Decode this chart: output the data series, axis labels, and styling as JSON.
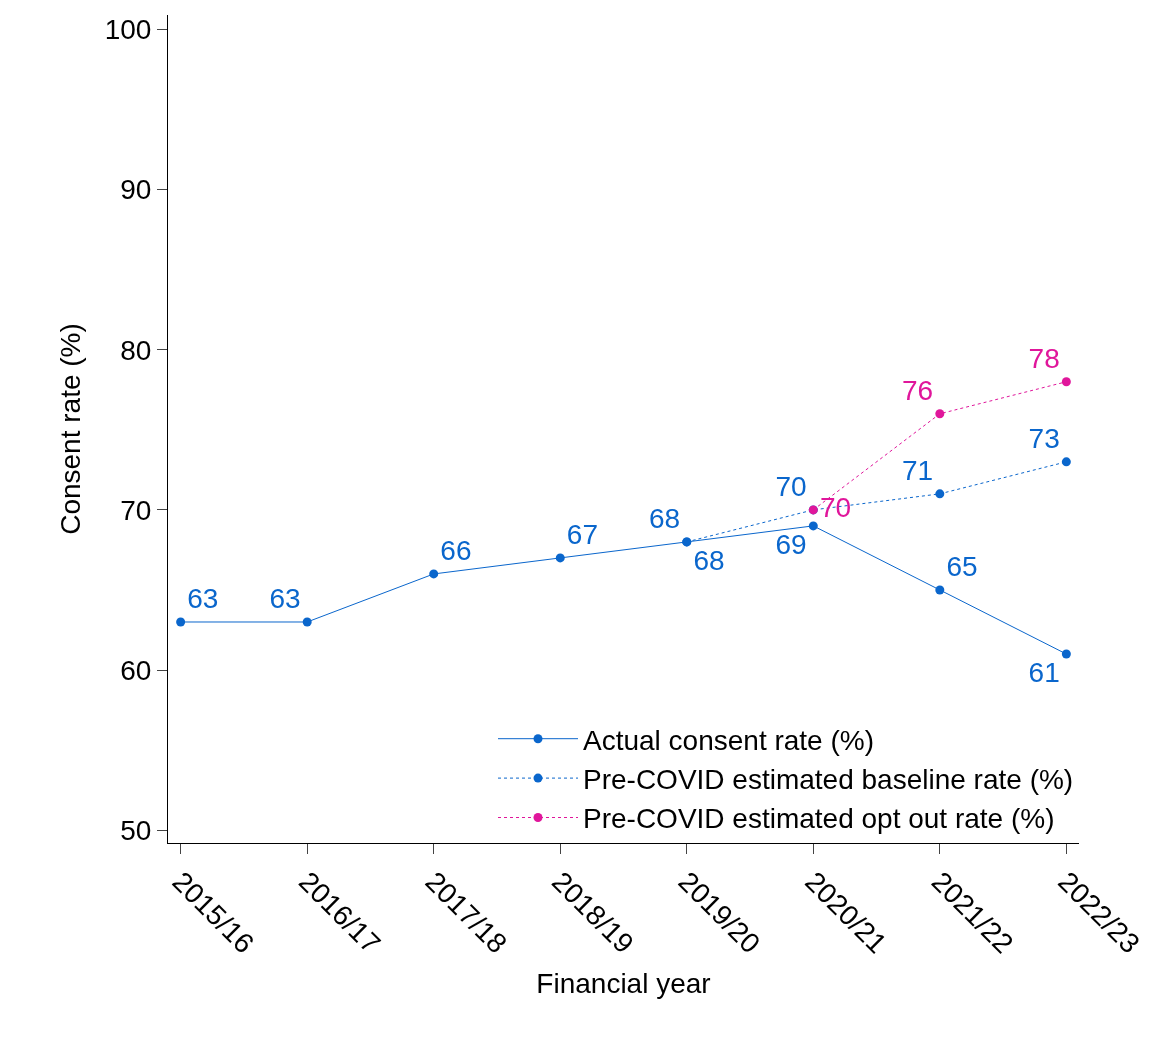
{
  "chart_data": {
    "type": "line",
    "xlabel": "Financial year",
    "ylabel": "Consent rate (%)",
    "categories": [
      "2015/16",
      "2016/17",
      "2017/18",
      "2018/19",
      "2019/20",
      "2020/21",
      "2021/22",
      "2022/23"
    ],
    "series": [
      {
        "name": "Actual consent rate (%)",
        "color": "#0a66cc",
        "line_style": "solid",
        "values": [
          63,
          63,
          66,
          67,
          68,
          69,
          65,
          61
        ]
      },
      {
        "name": "Pre-COVID estimated baseline rate (%)",
        "color": "#0a66cc",
        "line_style": "dotted",
        "values": [
          null,
          null,
          null,
          null,
          68,
          70,
          71,
          73
        ]
      },
      {
        "name": "Pre-COVID estimated opt out rate (%)",
        "color": "#e0169b",
        "line_style": "dotted",
        "values": [
          null,
          null,
          null,
          null,
          null,
          70,
          76,
          78
        ]
      }
    ],
    "ylim": [
      49.2,
      100.9
    ],
    "yticks": [
      50,
      60,
      70,
      80,
      90,
      100
    ],
    "marker": "circle",
    "data_labels": true,
    "legend": "bottom right"
  }
}
